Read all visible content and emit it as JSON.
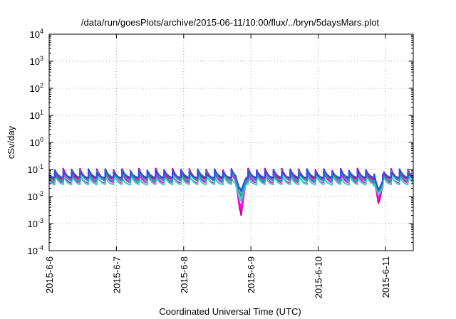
{
  "chart_data": {
    "type": "line",
    "title": "/data/run/goesPlots/archive/2015-06-11/10:00/flux/../bryn/5daysMars.plot",
    "xlabel": "Coordinated Universal Time (UTC)",
    "ylabel": "cSv/day",
    "yscale": "log",
    "ylim": [
      0.0001,
      10000
    ],
    "xlim": [
      "2015-06-06 00:00",
      "2015-06-11 12:00"
    ],
    "grid": true,
    "x_tick_labels": [
      "2015-6-6",
      "2015-6-7",
      "2015-6-8",
      "2015-6-9",
      "2015-6-10",
      "2015-6-11"
    ],
    "y_ticks": [
      {
        "base": "10",
        "exp": "-4"
      },
      {
        "base": "10",
        "exp": "-3"
      },
      {
        "base": "10",
        "exp": "-2"
      },
      {
        "base": "10",
        "exp": "-1"
      },
      {
        "base": "10",
        "exp": "0"
      },
      {
        "base": "10",
        "exp": "1"
      },
      {
        "base": "10",
        "exp": "2"
      },
      {
        "base": "10",
        "exp": "3"
      },
      {
        "base": "10",
        "exp": "4"
      }
    ],
    "sawtooth": {
      "period_hours": 3,
      "start_hours": 2,
      "dips": [
        {
          "day": 2.85,
          "value": 0.0017
        },
        {
          "day": 4.9,
          "value": 0.005
        }
      ]
    },
    "series": [
      {
        "color": "#e0007f",
        "peak": 0.095,
        "base": 0.042,
        "floor": 0.009
      },
      {
        "color": "#ff00ff",
        "peak": 0.07,
        "base": 0.03,
        "floor": 0.012
      },
      {
        "color": "#40d0c0",
        "peak": 0.06,
        "base": 0.026,
        "floor": 0.018
      },
      {
        "color": "#20a0a0",
        "peak": 0.08,
        "base": 0.036,
        "floor": 0.022
      },
      {
        "color": "#3050e0",
        "peak": 0.09,
        "base": 0.048,
        "floor": 0.028
      }
    ]
  }
}
